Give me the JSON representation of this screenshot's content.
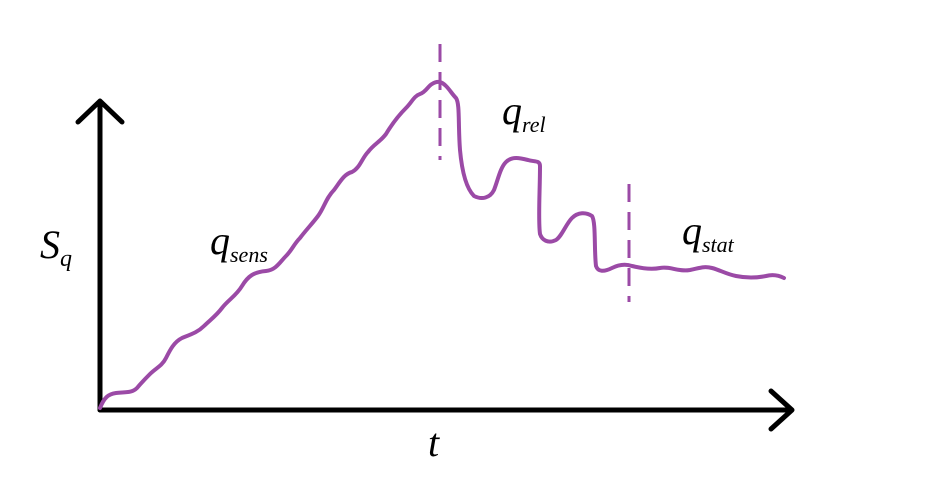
{
  "colors": {
    "background": "#ffffff",
    "axes": "#000000",
    "curve": "#9b4aa6",
    "divider": "#9b4aa6"
  },
  "axes": {
    "y_label": {
      "main": "S",
      "sub": "q"
    },
    "x_label": "t"
  },
  "regions": [
    {
      "main": "q",
      "sub": "sens"
    },
    {
      "main": "q",
      "sub": "rel"
    },
    {
      "main": "q",
      "sub": "stat"
    }
  ]
}
